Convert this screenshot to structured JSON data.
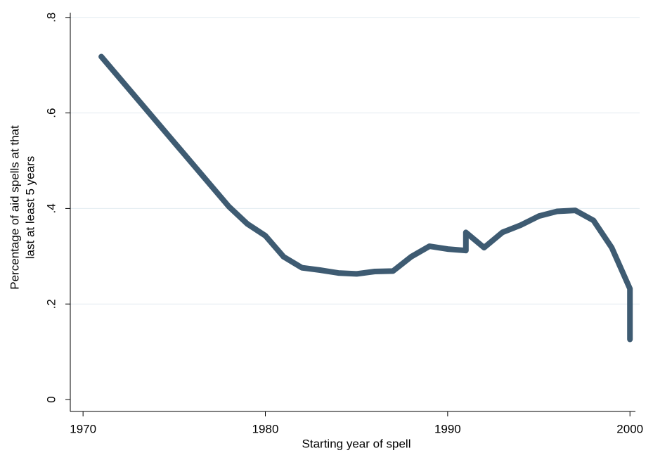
{
  "chart_data": {
    "type": "line",
    "y_label": [
      "Percentage of aid spells at that",
      "last at least 5 years"
    ],
    "x_label": "Starting year of spell",
    "x": [
      1971,
      1978,
      1979,
      1980,
      1981,
      1982,
      1983,
      1984,
      1985,
      1986,
      1987,
      1988,
      1989,
      1990,
      1991,
      1991,
      1992,
      1993,
      1994,
      1995,
      1996,
      1997,
      1998,
      1999,
      2000,
      2000
    ],
    "values": [
      0.718,
      0.404,
      0.368,
      0.343,
      0.299,
      0.276,
      0.271,
      0.265,
      0.263,
      0.268,
      0.269,
      0.299,
      0.321,
      0.315,
      0.312,
      0.35,
      0.318,
      0.35,
      0.365,
      0.384,
      0.394,
      0.396,
      0.375,
      0.318,
      0.232,
      0.126
    ],
    "color": "#3e5b72",
    "xlim": [
      1969.3,
      2000.3
    ],
    "xticks": [
      1970,
      1980,
      1990,
      2000
    ],
    "ylim": [
      -0.025,
      0.81
    ],
    "yticks": [
      0,
      {
        "value": 0.2,
        "label": ".2"
      },
      {
        "value": 0.4,
        "label": ".4"
      },
      {
        "value": 0.6,
        "label": ".6"
      },
      {
        "value": 0.8,
        "label": ".8"
      }
    ],
    "grid": true
  }
}
